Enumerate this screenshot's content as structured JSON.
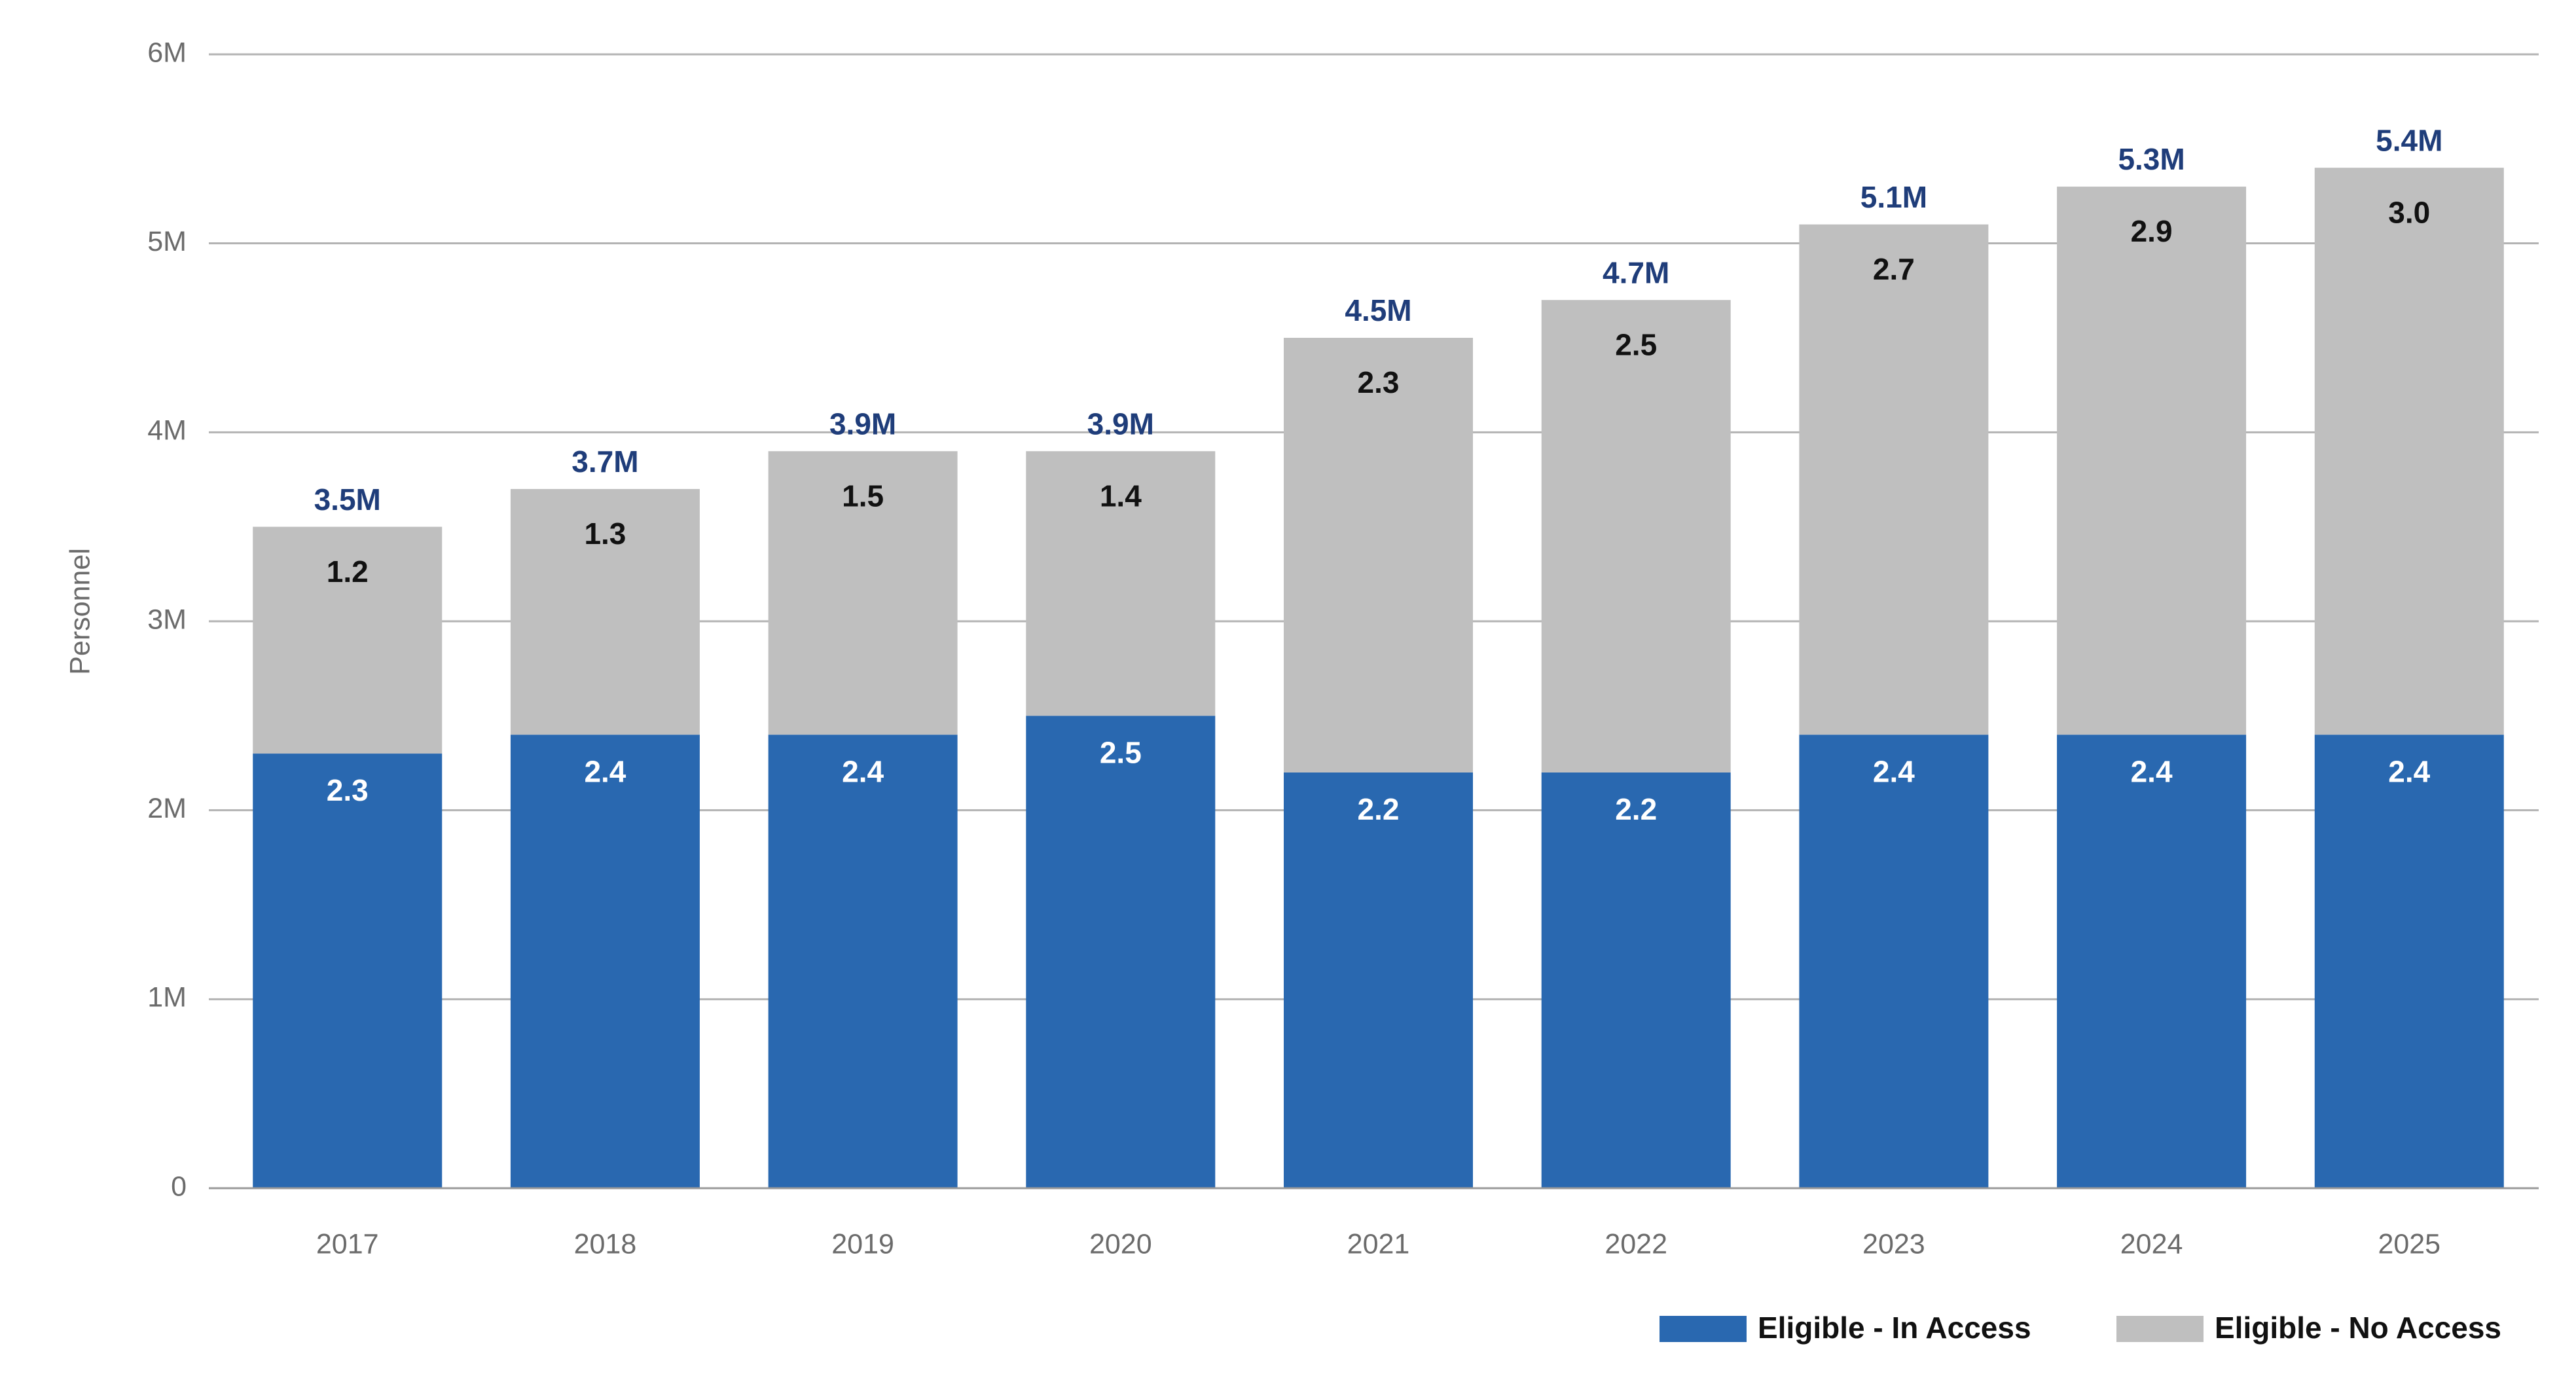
{
  "chart_data": {
    "type": "stacked_bar",
    "y_label": "Personnel",
    "categories": [
      "2017",
      "2018",
      "2019",
      "2020",
      "2021",
      "2022",
      "2023",
      "2024",
      "2025"
    ],
    "series": [
      {
        "name": "Eligible - In Access",
        "color": "#2968b0",
        "values": [
          2.3,
          2.4,
          2.4,
          2.5,
          2.2,
          2.2,
          2.4,
          2.4,
          2.4
        ]
      },
      {
        "name": "Eligible - No Access",
        "color": "#bfbfbf",
        "values": [
          1.2,
          1.3,
          1.5,
          1.4,
          2.3,
          2.5,
          2.7,
          2.9,
          3.0
        ],
        "value_labels": [
          "1.2",
          "1.3",
          "1.5",
          "1.4",
          "2.3",
          "2.5",
          "2.7",
          "2.9",
          "3.0"
        ]
      }
    ],
    "totals": {
      "values": [
        3.5,
        3.7,
        3.9,
        3.9,
        4.5,
        4.7,
        5.1,
        5.3,
        5.4
      ],
      "value_labels": [
        "3.5M",
        "3.7M",
        "3.9M",
        "3.9M",
        "4.5M",
        "4.7M",
        "5.1M",
        "5.3M",
        "5.4M"
      ]
    },
    "ylim": [
      0,
      6
    ],
    "yticks": [
      0,
      {
        "value": 1,
        "label": "1M"
      },
      {
        "value": 2,
        "label": "2M"
      },
      {
        "value": 3,
        "label": "3M"
      },
      {
        "value": 4,
        "label": "4M"
      },
      {
        "value": 5,
        "label": "5M"
      },
      {
        "value": 6,
        "label": "6M"
      }
    ],
    "grid": true,
    "legend": "bottom-right"
  }
}
